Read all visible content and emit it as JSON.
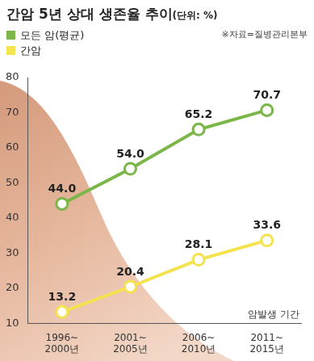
{
  "chart_data": {
    "type": "line",
    "title": "간암 5년 상대 생존율 추이",
    "subtitle": "(단위: %)",
    "source": "※자료=질병관리본부",
    "xlabel": "암발생 기간",
    "categories": [
      "1996~2000년",
      "2001~2005년",
      "2006~2010년",
      "2011~2015년"
    ],
    "series": [
      {
        "name": "모든 암(평균)",
        "color": "#7ab648",
        "values": [
          44.0,
          54.0,
          65.2,
          70.7
        ],
        "value_labels": [
          "44.0",
          "54.0",
          "65.2",
          "70.7"
        ]
      },
      {
        "name": "간암",
        "color": "#f4e24f",
        "values": [
          13.2,
          20.4,
          28.1,
          33.6
        ],
        "value_labels": [
          "13.2",
          "20.4",
          "28.1",
          "33.6"
        ]
      }
    ],
    "ylim": [
      10,
      80
    ],
    "yticks": [
      10,
      20,
      30,
      40,
      50,
      60,
      70,
      80
    ],
    "grid": false,
    "data_labels": true,
    "legend": "top left",
    "marker": "circle"
  }
}
